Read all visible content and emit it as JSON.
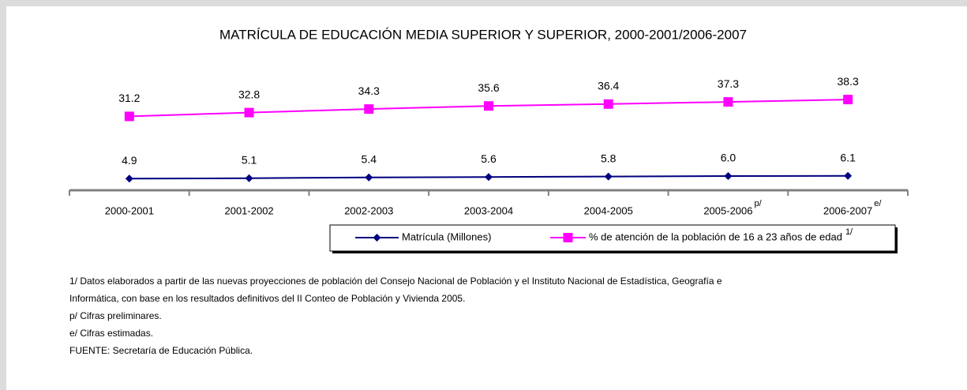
{
  "chart_data": {
    "type": "line",
    "title": "MATRÍCULA DE EDUCACIÓN MEDIA SUPERIOR Y SUPERIOR, 2000-2001/2006-2007",
    "categories": [
      "2000-2001",
      "2001-2002",
      "2002-2003",
      "2003-2004",
      "2004-2005",
      "2005-2006",
      "2006-2007"
    ],
    "category_superscripts": [
      null,
      null,
      null,
      null,
      null,
      "p/",
      "e/"
    ],
    "ylim": [
      0,
      45
    ],
    "series": [
      {
        "name": "Matrícula (Millones)",
        "color": "#000080",
        "marker": "diamond",
        "values": [
          4.9,
          5.1,
          5.4,
          5.6,
          5.8,
          6.0,
          6.1
        ],
        "value_labels": [
          "4.9",
          "5.1",
          "5.4",
          "5.6",
          "5.8",
          "6.0",
          "6.1"
        ]
      },
      {
        "name": "% de atención de la población de 16 a 23 años de edad",
        "name_superscript": "1/",
        "color": "#ff00ff",
        "marker": "square",
        "values": [
          31.2,
          32.8,
          34.3,
          35.6,
          36.4,
          37.3,
          38.3
        ],
        "value_labels": [
          "31.2",
          "32.8",
          "34.3",
          "35.6",
          "36.4",
          "37.3",
          "38.3"
        ]
      }
    ],
    "footnotes": [
      "1/ Datos elaborados a partir de  las nuevas proyecciones de población del Consejo Nacional de Población y el Instituto Nacional de Estadística, Geografía e",
      "Informática, con base en los resultados definitivos del  II Conteo de Población y Vivienda 2005.",
      "p/ Cifras preliminares.",
      "e/ Cifras estimadas.",
      "FUENTE: Secretaría de Educación Pública."
    ]
  }
}
